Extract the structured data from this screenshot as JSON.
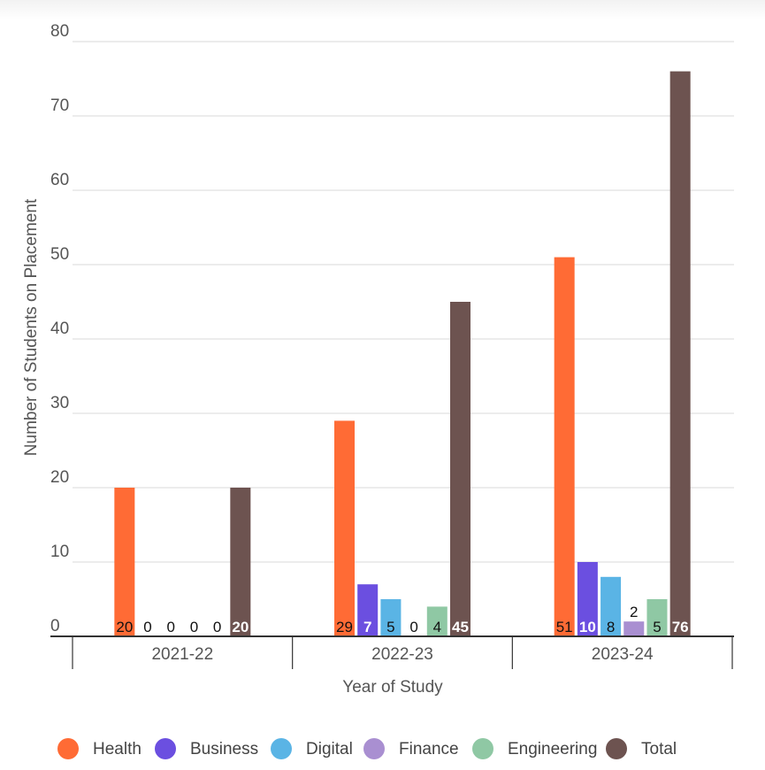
{
  "chart_data": {
    "type": "bar",
    "title": "",
    "xlabel": "Year of Study",
    "ylabel": "Number of Students on Placement",
    "ylim": [
      0,
      80
    ],
    "yticks": [
      0,
      10,
      20,
      30,
      40,
      50,
      60,
      70,
      80
    ],
    "grid": true,
    "legend_position": "bottom",
    "categories": [
      "2021-22",
      "2022-23",
      "2023-24"
    ],
    "series": [
      {
        "name": "Health",
        "color": "#ff6b35",
        "values": [
          20,
          29,
          51
        ],
        "label_color": "#111111"
      },
      {
        "name": "Business",
        "color": "#6b4fe0",
        "values": [
          0,
          7,
          10
        ],
        "label_color": "#ffffff"
      },
      {
        "name": "Digital",
        "color": "#5ab4e5",
        "values": [
          0,
          5,
          8
        ],
        "label_color": "#111111"
      },
      {
        "name": "Finance",
        "color": "#a98fd1",
        "values": [
          0,
          0,
          2
        ],
        "label_color": "#111111"
      },
      {
        "name": "Engineering",
        "color": "#8fc8a4",
        "values": [
          0,
          4,
          5
        ],
        "label_color": "#111111"
      },
      {
        "name": "Total",
        "color": "#6d5350",
        "values": [
          20,
          45,
          76
        ],
        "label_color": "#ffffff"
      }
    ]
  }
}
